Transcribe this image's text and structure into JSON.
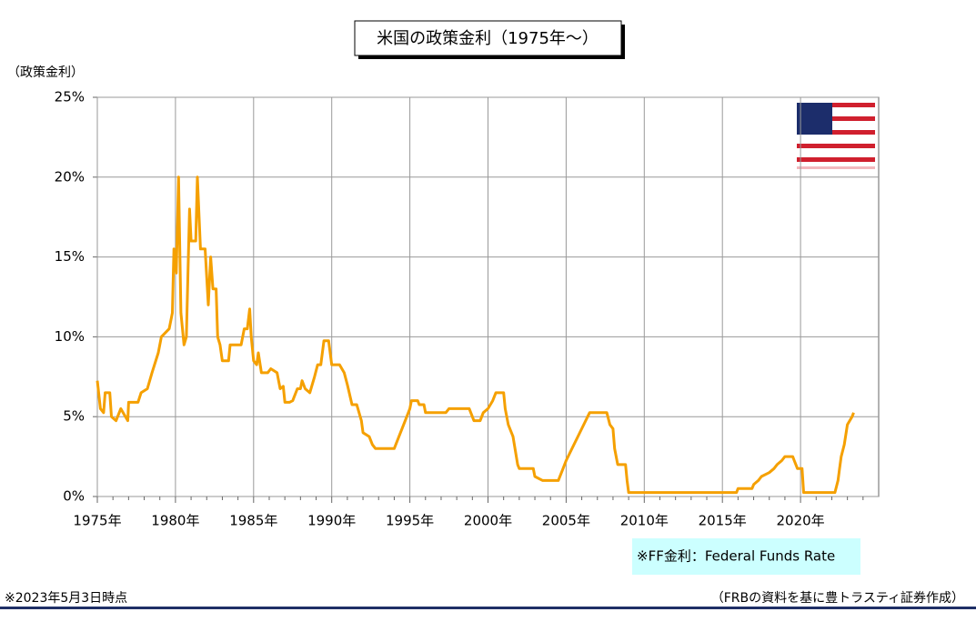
{
  "chart_data": {
    "type": "line",
    "title": "米国の政策金利（1975年～）",
    "y_label": "（政策金利）",
    "annotation": "※FF金利：Federal Funds Rate",
    "footnote_left": "※2023年5月3日時点",
    "footnote_right": "（FRBの資料を基に豊トラスティ証券作成）",
    "xlim": [
      1975,
      2025
    ],
    "ylim": [
      0,
      25
    ],
    "grid": true,
    "xticks": [
      {
        "value": 1975,
        "label": "1975年"
      },
      {
        "value": 1980,
        "label": "1980年"
      },
      {
        "value": 1985,
        "label": "1985年"
      },
      {
        "value": 1990,
        "label": "1990年"
      },
      {
        "value": 1995,
        "label": "1995年"
      },
      {
        "value": 2000,
        "label": "2000年"
      },
      {
        "value": 2005,
        "label": "2005年"
      },
      {
        "value": 2010,
        "label": "2010年"
      },
      {
        "value": 2015,
        "label": "2015年"
      },
      {
        "value": 2020,
        "label": "2020年"
      }
    ],
    "yticks": [
      {
        "value": 0,
        "label": "0%"
      },
      {
        "value": 5,
        "label": "5%"
      },
      {
        "value": 10,
        "label": "10%"
      },
      {
        "value": 15,
        "label": "15%"
      },
      {
        "value": 20,
        "label": "20%"
      },
      {
        "value": 25,
        "label": "25%"
      }
    ],
    "x": [
      1975.0,
      1975.2,
      1975.4,
      1975.5,
      1975.8,
      1975.9,
      1976.2,
      1976.5,
      1976.8,
      1976.95,
      1977.0,
      1977.6,
      1977.8,
      1978.2,
      1978.5,
      1978.9,
      1979.1,
      1979.6,
      1979.8,
      1979.9,
      1980.05,
      1980.2,
      1980.35,
      1980.55,
      1980.7,
      1980.9,
      1981.0,
      1981.3,
      1981.4,
      1981.6,
      1981.9,
      1982.1,
      1982.25,
      1982.4,
      1982.6,
      1982.7,
      1982.85,
      1983.0,
      1983.4,
      1983.5,
      1983.8,
      1984.2,
      1984.4,
      1984.6,
      1984.75,
      1984.85,
      1985.0,
      1985.2,
      1985.3,
      1985.5,
      1985.9,
      1986.1,
      1986.5,
      1986.7,
      1986.9,
      1987.0,
      1987.3,
      1987.5,
      1987.8,
      1988.0,
      1988.1,
      1988.3,
      1988.6,
      1988.9,
      1989.1,
      1989.3,
      1989.5,
      1989.8,
      1989.9,
      1990.0,
      1990.5,
      1990.8,
      1991.0,
      1991.3,
      1991.6,
      1991.9,
      1992.0,
      1992.4,
      1992.6,
      1992.8,
      1994.0,
      1994.3,
      1994.5,
      1994.8,
      1995.0,
      1995.1,
      1995.5,
      1995.6,
      1995.9,
      1996.0,
      1997.3,
      1997.5,
      1998.8,
      1999.1,
      1999.5,
      1999.7,
      2000.0,
      2000.3,
      2000.5,
      2001.0,
      2001.1,
      2001.3,
      2001.6,
      2001.9,
      2002.0,
      2002.9,
      2003.0,
      2003.5,
      2004.5,
      2004.8,
      2005.0,
      2005.5,
      2006.0,
      2006.5,
      2007.6,
      2007.8,
      2008.0,
      2008.1,
      2008.3,
      2008.8,
      2008.9,
      2009.0,
      2015.9,
      2016.0,
      2016.9,
      2017.0,
      2017.3,
      2017.5,
      2018.0,
      2018.3,
      2018.5,
      2018.8,
      2019.0,
      2019.5,
      2019.6,
      2019.8,
      2020.1,
      2020.2,
      2022.2,
      2022.4,
      2022.5,
      2022.6,
      2022.8,
      2023.0,
      2023.3,
      2023.4
    ],
    "values": [
      7.25,
      5.5,
      5.25,
      6.5,
      6.5,
      5.0,
      4.75,
      5.5,
      5.0,
      4.75,
      5.9,
      5.9,
      6.5,
      6.75,
      7.75,
      9.0,
      10.0,
      10.5,
      11.5,
      15.5,
      14.0,
      20.0,
      11.5,
      9.5,
      10.0,
      18.0,
      16.0,
      16.0,
      20.0,
      15.5,
      15.5,
      12.0,
      15.0,
      13.0,
      13.0,
      10.0,
      9.5,
      8.5,
      8.5,
      9.5,
      9.5,
      9.5,
      10.5,
      10.5,
      11.75,
      10.0,
      8.5,
      8.25,
      9.0,
      7.75,
      7.75,
      8.0,
      7.75,
      6.75,
      6.9,
      5.9,
      5.9,
      6.0,
      6.75,
      6.75,
      7.25,
      6.75,
      6.5,
      7.5,
      8.25,
      8.25,
      9.75,
      9.75,
      9.0,
      8.25,
      8.25,
      7.75,
      7.0,
      5.75,
      5.75,
      4.75,
      4.0,
      3.75,
      3.25,
      3.0,
      3.0,
      3.75,
      4.25,
      5.0,
      5.5,
      6.0,
      6.0,
      5.75,
      5.75,
      5.25,
      5.25,
      5.5,
      5.5,
      4.75,
      4.75,
      5.25,
      5.5,
      6.0,
      6.5,
      6.5,
      5.5,
      4.5,
      3.75,
      2.0,
      1.75,
      1.75,
      1.25,
      1.0,
      1.0,
      1.75,
      2.25,
      3.25,
      4.25,
      5.25,
      5.25,
      4.5,
      4.25,
      3.0,
      2.0,
      2.0,
      1.0,
      0.25,
      0.25,
      0.5,
      0.5,
      0.75,
      1.0,
      1.25,
      1.5,
      1.75,
      2.0,
      2.25,
      2.5,
      2.5,
      2.25,
      1.75,
      1.75,
      0.25,
      0.25,
      1.0,
      1.75,
      2.5,
      3.25,
      4.5,
      5.0,
      5.25
    ],
    "color": "#f5a000"
  }
}
